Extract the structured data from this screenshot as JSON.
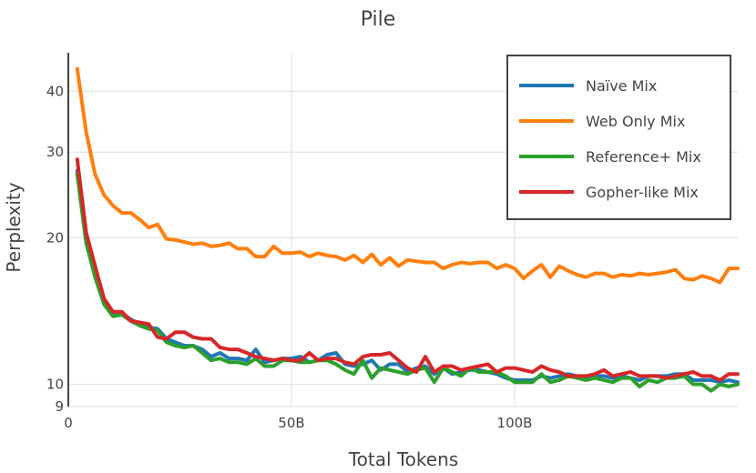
{
  "chart_data": {
    "type": "line",
    "title": "Pile",
    "xlabel": "Total Tokens",
    "ylabel": "Perplexity",
    "xlim": [
      0,
      150
    ],
    "ylim": [
      9,
      48
    ],
    "y_scale": "log",
    "grid": true,
    "legend_position": "top-right",
    "x_ticks": [
      {
        "value": 0,
        "label": "0"
      },
      {
        "value": 50,
        "label": "50B"
      },
      {
        "value": 100,
        "label": "100B"
      }
    ],
    "y_ticks": [
      {
        "value": 9,
        "label": "9"
      },
      {
        "value": 10,
        "label": "10"
      },
      {
        "value": 20,
        "label": "20"
      },
      {
        "value": 30,
        "label": "30"
      },
      {
        "value": 40,
        "label": "40"
      }
    ],
    "x": [
      2,
      4,
      6,
      8,
      10,
      12,
      14,
      16,
      18,
      20,
      22,
      24,
      26,
      28,
      30,
      32,
      34,
      36,
      38,
      40,
      42,
      44,
      46,
      48,
      50,
      52,
      54,
      56,
      58,
      60,
      62,
      64,
      66,
      68,
      70,
      72,
      74,
      76,
      78,
      80,
      82,
      84,
      86,
      88,
      90,
      92,
      94,
      96,
      98,
      100,
      102,
      104,
      106,
      108,
      110,
      112,
      114,
      116,
      118,
      120,
      122,
      124,
      126,
      128,
      130,
      132,
      134,
      136,
      138,
      140,
      142,
      144,
      146,
      148,
      150
    ],
    "series": [
      {
        "name": "Naïve Mix",
        "color": "#1f77b4",
        "values": [
          27.5,
          19.8,
          16.8,
          14.8,
          13.9,
          14.0,
          13.6,
          13.3,
          13.1,
          13.0,
          12.4,
          12.2,
          12.0,
          12.0,
          11.8,
          11.4,
          11.6,
          11.3,
          11.3,
          11.2,
          11.8,
          11.1,
          11.2,
          11.3,
          11.3,
          11.4,
          11.1,
          11.2,
          11.5,
          11.6,
          11.0,
          10.9,
          11.0,
          11.2,
          10.7,
          11.0,
          11.0,
          10.6,
          10.8,
          10.9,
          10.5,
          10.8,
          10.5,
          10.6,
          10.7,
          10.7,
          10.6,
          10.5,
          10.3,
          10.2,
          10.2,
          10.2,
          10.4,
          10.3,
          10.4,
          10.5,
          10.4,
          10.3,
          10.4,
          10.4,
          10.3,
          10.4,
          10.3,
          10.2,
          10.4,
          10.4,
          10.4,
          10.5,
          10.5,
          10.2,
          10.2,
          10.2,
          10.1,
          10.2,
          10.1
        ]
      },
      {
        "name": "Web Only Mix",
        "color": "#ff7f0e",
        "values": [
          44.5,
          33.0,
          27.0,
          24.5,
          23.3,
          22.5,
          22.5,
          21.8,
          21.0,
          21.3,
          19.9,
          19.8,
          19.6,
          19.4,
          19.5,
          19.2,
          19.3,
          19.5,
          19.0,
          19.0,
          18.3,
          18.3,
          19.2,
          18.6,
          18.6,
          18.7,
          18.3,
          18.6,
          18.4,
          18.3,
          18.0,
          18.4,
          17.8,
          18.5,
          17.6,
          18.2,
          17.5,
          18.0,
          17.9,
          17.8,
          17.8,
          17.3,
          17.6,
          17.8,
          17.7,
          17.8,
          17.8,
          17.3,
          17.6,
          17.3,
          16.5,
          17.1,
          17.6,
          16.6,
          17.5,
          17.1,
          16.8,
          16.6,
          16.9,
          16.9,
          16.6,
          16.8,
          16.7,
          16.9,
          16.8,
          16.9,
          17.0,
          17.2,
          16.5,
          16.4,
          16.7,
          16.5,
          16.2,
          17.3,
          17.3
        ]
      },
      {
        "name": "Reference+ Mix",
        "color": "#2ca02c",
        "values": [
          27.0,
          19.5,
          16.6,
          14.6,
          13.8,
          13.9,
          13.5,
          13.2,
          13.0,
          12.9,
          12.2,
          12.0,
          11.9,
          12.0,
          11.6,
          11.2,
          11.3,
          11.1,
          11.1,
          11.0,
          11.3,
          10.9,
          10.9,
          11.2,
          11.2,
          11.1,
          11.1,
          11.2,
          11.2,
          11.0,
          10.7,
          10.5,
          11.2,
          10.3,
          10.8,
          10.7,
          10.6,
          10.5,
          10.7,
          10.8,
          10.1,
          10.8,
          10.6,
          10.4,
          10.8,
          10.6,
          10.6,
          10.6,
          10.4,
          10.1,
          10.1,
          10.1,
          10.5,
          10.1,
          10.2,
          10.4,
          10.3,
          10.2,
          10.3,
          10.2,
          10.1,
          10.3,
          10.3,
          9.9,
          10.2,
          10.1,
          10.3,
          10.3,
          10.4,
          10.0,
          10.0,
          9.7,
          10.0,
          9.9,
          10.0
        ]
      },
      {
        "name": "Gopher-like Mix",
        "color": "#d62728",
        "values": [
          29.0,
          20.5,
          17.5,
          15.0,
          14.1,
          14.1,
          13.5,
          13.4,
          13.3,
          12.5,
          12.4,
          12.8,
          12.8,
          12.5,
          12.4,
          12.4,
          11.9,
          11.8,
          11.8,
          11.6,
          11.4,
          11.3,
          11.2,
          11.3,
          11.2,
          11.2,
          11.6,
          11.2,
          11.3,
          11.3,
          11.1,
          11.0,
          11.4,
          11.5,
          11.5,
          11.6,
          11.2,
          10.8,
          10.6,
          11.4,
          10.6,
          10.9,
          10.9,
          10.7,
          10.8,
          10.9,
          11.0,
          10.6,
          10.8,
          10.8,
          10.7,
          10.6,
          10.9,
          10.7,
          10.6,
          10.4,
          10.4,
          10.4,
          10.5,
          10.7,
          10.4,
          10.5,
          10.6,
          10.4,
          10.4,
          10.4,
          10.3,
          10.4,
          10.5,
          10.6,
          10.4,
          10.4,
          10.2,
          10.5,
          10.5
        ]
      }
    ]
  }
}
